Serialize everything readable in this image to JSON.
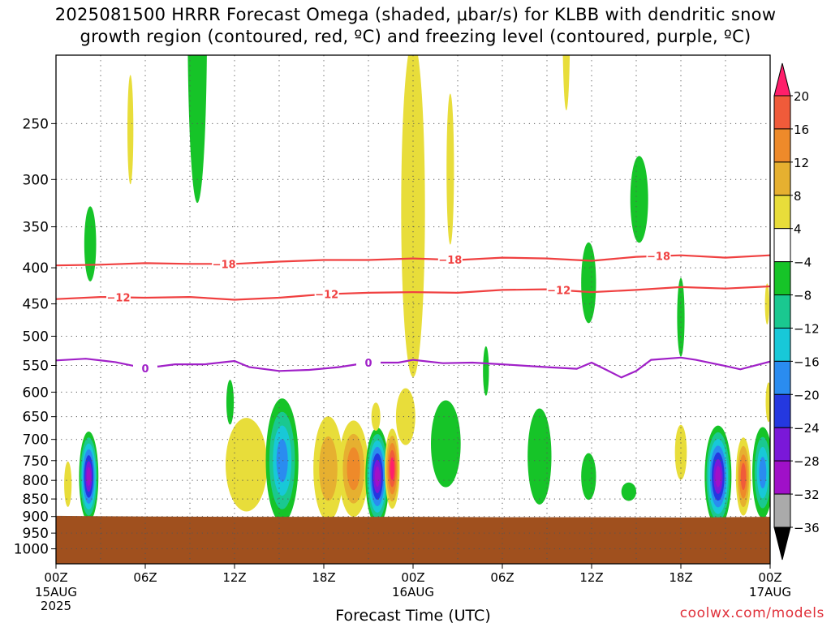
{
  "title": {
    "line1": "2025081500 HRRR Forecast Omega (shaded, μbar/s) for KLBB with dendritic snow",
    "line2": "growth region (contoured, red, ºC) and freezing level (contoured, purple, ºC)"
  },
  "credit": "coolwx.com/models",
  "chart_data": {
    "type": "heatmap",
    "xlabel": "Forecast Time (UTC)",
    "xlim_hours": [
      0,
      48
    ],
    "x_ticks": [
      {
        "hour": 0,
        "label": "00Z",
        "sub1": "15AUG",
        "sub2": "2025"
      },
      {
        "hour": 6,
        "label": "06Z"
      },
      {
        "hour": 12,
        "label": "12Z"
      },
      {
        "hour": 18,
        "label": "18Z"
      },
      {
        "hour": 24,
        "label": "00Z",
        "sub1": "16AUG"
      },
      {
        "hour": 30,
        "label": "06Z"
      },
      {
        "hour": 36,
        "label": "12Z"
      },
      {
        "hour": 42,
        "label": "18Z"
      },
      {
        "hour": 48,
        "label": "00Z",
        "sub1": "17AUG"
      }
    ],
    "y_axis": "pressure (hPa), log scale, inverted",
    "y_ticks": [
      250,
      300,
      350,
      400,
      450,
      500,
      550,
      600,
      650,
      700,
      750,
      800,
      850,
      900,
      950,
      1000
    ],
    "ylim": [
      1050,
      200
    ],
    "grid": true,
    "colorbar": {
      "levels": [
        20,
        16,
        12,
        8,
        4,
        -4,
        -8,
        -12,
        -16,
        -20,
        -24,
        -28,
        -32,
        -36
      ],
      "colors": [
        "#ff1f6b",
        "#f05b3a",
        "#ee8a2a",
        "#e6b030",
        "#e8dd3a",
        "#ffffff",
        "#16c428",
        "#1ac890",
        "#18c8d8",
        "#2a8cf0",
        "#2438e0",
        "#7a18d8",
        "#a010c8",
        "#aaaaaa",
        "#000000"
      ]
    },
    "dgz_contours": [
      {
        "label": "-18",
        "color": "#f04040",
        "points": [
          [
            0,
            397
          ],
          [
            3,
            396
          ],
          [
            6,
            394
          ],
          [
            9,
            395
          ],
          [
            12,
            395
          ],
          [
            15,
            392
          ],
          [
            18,
            390
          ],
          [
            21,
            390
          ],
          [
            24,
            388
          ],
          [
            27,
            390
          ],
          [
            30,
            387
          ],
          [
            33,
            388
          ],
          [
            36,
            391
          ],
          [
            39,
            386
          ],
          [
            42,
            384
          ],
          [
            45,
            387
          ],
          [
            48,
            384
          ]
        ]
      },
      {
        "label": "-12",
        "color": "#f04040",
        "points": [
          [
            0,
            443
          ],
          [
            3,
            440
          ],
          [
            6,
            441
          ],
          [
            9,
            440
          ],
          [
            12,
            444
          ],
          [
            15,
            441
          ],
          [
            18,
            436
          ],
          [
            21,
            434
          ],
          [
            24,
            433
          ],
          [
            27,
            434
          ],
          [
            30,
            430
          ],
          [
            33,
            429
          ],
          [
            36,
            433
          ],
          [
            39,
            430
          ],
          [
            42,
            426
          ],
          [
            45,
            428
          ],
          [
            48,
            425
          ]
        ]
      }
    ],
    "freezing_level": {
      "label": "0",
      "color": "#a020c8",
      "points": [
        [
          0,
          541
        ],
        [
          2,
          538
        ],
        [
          4,
          544
        ],
        [
          6,
          555
        ],
        [
          8,
          548
        ],
        [
          10,
          548
        ],
        [
          12,
          542
        ],
        [
          13,
          553
        ],
        [
          15,
          560
        ],
        [
          17,
          558
        ],
        [
          19,
          553
        ],
        [
          21,
          545
        ],
        [
          23,
          545
        ],
        [
          24,
          540
        ],
        [
          26,
          546
        ],
        [
          28,
          545
        ],
        [
          30,
          548
        ],
        [
          33,
          553
        ],
        [
          35,
          556
        ],
        [
          36,
          545
        ],
        [
          37,
          558
        ],
        [
          38,
          572
        ],
        [
          39,
          560
        ],
        [
          40,
          540
        ],
        [
          42,
          536
        ],
        [
          43,
          540
        ],
        [
          45,
          551
        ],
        [
          46,
          557
        ],
        [
          48,
          543
        ]
      ]
    },
    "omega_features": [
      {
        "hour": 2.2,
        "p": 790,
        "w": 1.3,
        "ph": 230,
        "value": -28
      },
      {
        "hour": 0.8,
        "p": 810,
        "w": 0.5,
        "ph": 120,
        "value": 6
      },
      {
        "hour": 2.3,
        "p": 370,
        "w": 0.8,
        "ph": 90,
        "value": -6
      },
      {
        "hour": 5.0,
        "p": 255,
        "w": 0.4,
        "ph": 90,
        "value": 5
      },
      {
        "hour": 9.5,
        "p": 180,
        "w": 1.3,
        "ph": 190,
        "value": -6
      },
      {
        "hour": 11.7,
        "p": 620,
        "w": 0.5,
        "ph": 90,
        "value": -6
      },
      {
        "hour": 12.8,
        "p": 760,
        "w": 2.8,
        "ph": 230,
        "value": 6
      },
      {
        "hour": 15.2,
        "p": 750,
        "w": 2.2,
        "ph": 300,
        "value": -16
      },
      {
        "hour": 18.3,
        "p": 770,
        "w": 2.0,
        "ph": 260,
        "value": 10
      },
      {
        "hour": 20.0,
        "p": 770,
        "w": 2.0,
        "ph": 240,
        "value": 14
      },
      {
        "hour": 21.6,
        "p": 790,
        "w": 1.6,
        "ph": 250,
        "value": -28
      },
      {
        "hour": 22.6,
        "p": 770,
        "w": 1.0,
        "ph": 200,
        "value": 20
      },
      {
        "hour": 23.5,
        "p": 650,
        "w": 1.3,
        "ph": 120,
        "value": 6
      },
      {
        "hour": 21.5,
        "p": 650,
        "w": 0.6,
        "ph": 60,
        "value": 5
      },
      {
        "hour": 24.0,
        "p": 330,
        "w": 1.6,
        "ph": 330,
        "value": 6
      },
      {
        "hour": 26.5,
        "p": 290,
        "w": 0.5,
        "ph": 140,
        "value": 5
      },
      {
        "hour": 26.2,
        "p": 710,
        "w": 2.0,
        "ph": 200,
        "value": -6
      },
      {
        "hour": 28.9,
        "p": 560,
        "w": 0.4,
        "ph": 90,
        "value": -6
      },
      {
        "hour": 32.5,
        "p": 740,
        "w": 1.6,
        "ph": 230,
        "value": -6
      },
      {
        "hour": 34.3,
        "p": 180,
        "w": 0.5,
        "ph": 100,
        "value": 5
      },
      {
        "hour": 35.8,
        "p": 420,
        "w": 1.0,
        "ph": 110,
        "value": -6
      },
      {
        "hour": 35.8,
        "p": 790,
        "w": 1.0,
        "ph": 120,
        "value": -6
      },
      {
        "hour": 38.5,
        "p": 830,
        "w": 1.0,
        "ph": 50,
        "value": -6
      },
      {
        "hour": 39.2,
        "p": 320,
        "w": 1.2,
        "ph": 90,
        "value": -6
      },
      {
        "hour": 42.0,
        "p": 470,
        "w": 0.5,
        "ph": 120,
        "value": -6
      },
      {
        "hour": 42.0,
        "p": 730,
        "w": 0.8,
        "ph": 130,
        "value": 6
      },
      {
        "hour": 44.5,
        "p": 790,
        "w": 1.8,
        "ph": 260,
        "value": -28
      },
      {
        "hour": 46.2,
        "p": 790,
        "w": 1.0,
        "ph": 200,
        "value": 16
      },
      {
        "hour": 47.5,
        "p": 780,
        "w": 1.4,
        "ph": 230,
        "value": -16
      },
      {
        "hour": 47.8,
        "p": 450,
        "w": 0.3,
        "ph": 60,
        "value": 5
      },
      {
        "hour": 47.9,
        "p": 620,
        "w": 0.4,
        "ph": 80,
        "value": 5
      }
    ],
    "surface_pressure": [
      [
        0,
        898
      ],
      [
        6,
        900
      ],
      [
        12,
        901
      ],
      [
        18,
        901
      ],
      [
        24,
        901
      ],
      [
        30,
        902
      ],
      [
        36,
        902
      ],
      [
        42,
        903
      ],
      [
        48,
        901
      ]
    ],
    "surface_color": "#a0501e"
  }
}
